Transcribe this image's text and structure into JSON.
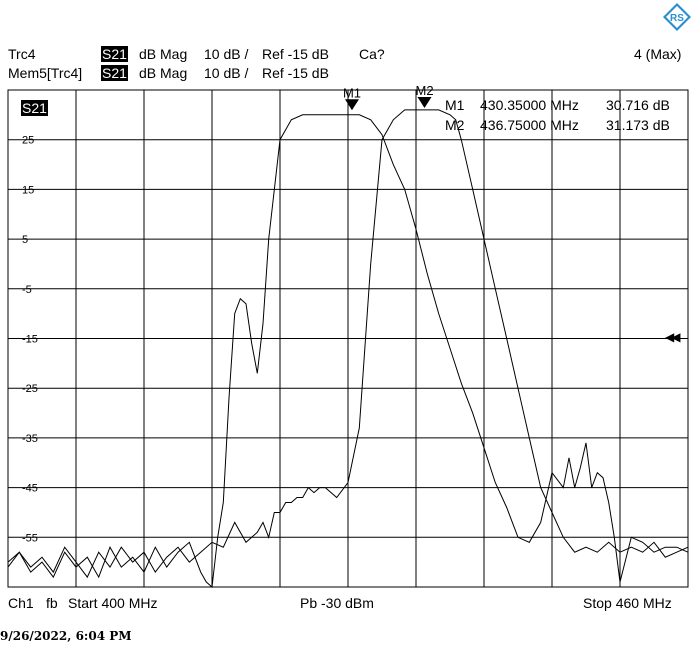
{
  "header": {
    "trace1": {
      "name": "Trc4",
      "param": "S21",
      "format": "dB Mag",
      "scale": "10 dB /",
      "ref": "Ref -15 dB",
      "cal": "Ca?"
    },
    "trace2": {
      "name": "Mem5[Trc4]",
      "param": "S21",
      "format": "dB Mag",
      "scale": "10 dB /",
      "ref": "Ref -15 dB"
    },
    "max_label": "4 (Max)"
  },
  "markers": [
    {
      "label": "M1",
      "freq": "430.35000 MHz",
      "value": "30.716 dB"
    },
    {
      "label": "M2",
      "freq": "436.75000 MHz",
      "value": "31.173 dB"
    }
  ],
  "footer": {
    "channel": "Ch1",
    "fb": "fb",
    "start": "Start  400 MHz",
    "power": "Pb  -30 dBm",
    "stop": "Stop  460 MHz"
  },
  "timestamp": "9/26/2022, 6:04 PM",
  "colors": {
    "trace": "#000000",
    "grid": "#000000",
    "background": "#ffffff"
  },
  "chart_data": {
    "type": "line",
    "trace_label": "S21",
    "xlim": [
      400,
      460
    ],
    "ylim": [
      -65,
      35
    ],
    "yticks": [
      25,
      15,
      5,
      -5,
      -15,
      -25,
      -35,
      -45,
      -55
    ],
    "grid": true,
    "reference_level": -15,
    "series": [
      {
        "name": "Trc4",
        "x": [
          400,
          401,
          402,
          403,
          404,
          405,
          406,
          407,
          408,
          409,
          410,
          411,
          412,
          413,
          414,
          415,
          416,
          417,
          418,
          419,
          420,
          421,
          421.5,
          422,
          422.5,
          423,
          423.5,
          424,
          424.5,
          425,
          425.5,
          426,
          426.5,
          427,
          427.5,
          428,
          429,
          430,
          431,
          432,
          433,
          434,
          435,
          436,
          437,
          438,
          439,
          439.5,
          440,
          441,
          442,
          443,
          444,
          445,
          446,
          447,
          448,
          449,
          450,
          451,
          452,
          453,
          454,
          455,
          456,
          457,
          458,
          459,
          460
        ],
        "y": [
          -60,
          -58,
          -61,
          -59,
          -62,
          -57,
          -60,
          -63,
          -58,
          -61,
          -57,
          -60,
          -58,
          -62,
          -59,
          -57,
          -60,
          -58,
          -56,
          -57,
          -52,
          -56,
          -55,
          -54,
          -52,
          -55,
          -50,
          -50,
          -48,
          -48,
          -47,
          -47,
          -45,
          -46,
          -45,
          -45,
          -47,
          -44,
          -33,
          0,
          25,
          29,
          31,
          31,
          31,
          31,
          30,
          29,
          25,
          15,
          5,
          -5,
          -15,
          -25,
          -35,
          -45,
          -50,
          -55,
          -58,
          -57,
          -58,
          -56,
          -58,
          -57,
          -58,
          -56,
          -59,
          -58,
          -57
        ]
      },
      {
        "name": "Mem5[Trc4]",
        "x": [
          400,
          401,
          402,
          403,
          404,
          405,
          406,
          407,
          408,
          409,
          410,
          411,
          412,
          413,
          414,
          415,
          416,
          417,
          417.5,
          418,
          418.5,
          419,
          419.5,
          420,
          420.5,
          421,
          421.5,
          422,
          422.5,
          423,
          424,
          425,
          426,
          427,
          428,
          429,
          430,
          431,
          432,
          433,
          434,
          435,
          436,
          437,
          438,
          439,
          440,
          441,
          442,
          443,
          444,
          445,
          446,
          447,
          448,
          449,
          449.5,
          450,
          450.5,
          451,
          451.5,
          452,
          452.5,
          453,
          453.5,
          454,
          455,
          456,
          457,
          458,
          459,
          460
        ],
        "y": [
          -61,
          -58,
          -62,
          -60,
          -63,
          -58,
          -61,
          -59,
          -63,
          -57,
          -61,
          -59,
          -62,
          -57,
          -61,
          -58,
          -56,
          -62,
          -64,
          -65,
          -55,
          -48,
          -27,
          -10,
          -7,
          -8,
          -16,
          -22,
          -12,
          5,
          25,
          29,
          30,
          30,
          30,
          30,
          30,
          30,
          29,
          26,
          20,
          15,
          7,
          -2,
          -10,
          -17,
          -24,
          -30,
          -37,
          -44,
          -49,
          -55,
          -56,
          -52,
          -42,
          -45,
          -39,
          -45,
          -41,
          -36,
          -45,
          -42,
          -43,
          -48,
          -55,
          -64,
          -55,
          -56,
          -58,
          -57,
          -57,
          -58
        ]
      }
    ]
  }
}
